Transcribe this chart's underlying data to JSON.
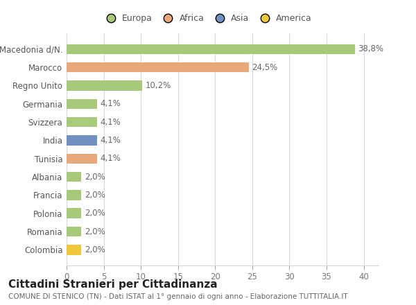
{
  "categories": [
    "Colombia",
    "Romania",
    "Polonia",
    "Francia",
    "Albania",
    "Tunisia",
    "India",
    "Svizzera",
    "Germania",
    "Regno Unito",
    "Marocco",
    "Macedonia d/N."
  ],
  "values": [
    2.0,
    2.0,
    2.0,
    2.0,
    2.0,
    4.1,
    4.1,
    4.1,
    4.1,
    10.2,
    24.5,
    38.8
  ],
  "bar_colors": [
    "#f0c93a",
    "#a8c87a",
    "#a8c87a",
    "#a8c87a",
    "#a8c87a",
    "#e8a87c",
    "#7090bf",
    "#a8c87a",
    "#a8c87a",
    "#a8c87a",
    "#e8a87c",
    "#a8c87a"
  ],
  "labels": [
    "2,0%",
    "2,0%",
    "2,0%",
    "2,0%",
    "2,0%",
    "4,1%",
    "4,1%",
    "4,1%",
    "4,1%",
    "10,2%",
    "24,5%",
    "38,8%"
  ],
  "legend": [
    {
      "label": "Europa",
      "color": "#a8c87a"
    },
    {
      "label": "Africa",
      "color": "#e8a87c"
    },
    {
      "label": "Asia",
      "color": "#7090bf"
    },
    {
      "label": "America",
      "color": "#f0c93a"
    }
  ],
  "title": "Cittadini Stranieri per Cittadinanza",
  "subtitle": "COMUNE DI STENICO (TN) - Dati ISTAT al 1° gennaio di ogni anno - Elaborazione TUTTITALIA.IT",
  "xlim": [
    0,
    42
  ],
  "xticks": [
    0,
    5,
    10,
    15,
    20,
    25,
    30,
    35,
    40
  ],
  "bg_color": "#ffffff",
  "grid_color": "#d8d8d8",
  "bar_height": 0.55,
  "label_fontsize": 8.5,
  "tick_fontsize": 8.5,
  "title_fontsize": 11,
  "subtitle_fontsize": 7.5
}
